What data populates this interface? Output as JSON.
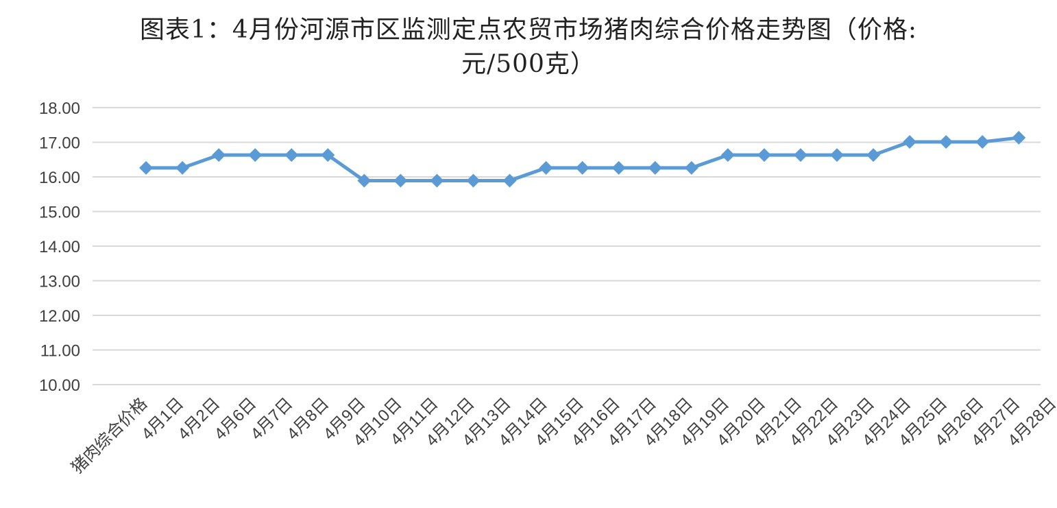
{
  "chart_data": {
    "type": "line",
    "title_lines": [
      "图表1：4月份河源市区监测定点农贸市场猪肉综合价格走势图（价格:",
      "元/500克）"
    ],
    "categories": [
      "猪肉综合价格",
      "4月1日",
      "4月2日",
      "4月6日",
      "4月7日",
      "4月8日",
      "4月9日",
      "4月10日",
      "4月11日",
      "4月12日",
      "4月13日",
      "4月14日",
      "4月15日",
      "4月16日",
      "4月17日",
      "4月18日",
      "4月19日",
      "4月20日",
      "4月21日",
      "4月22日",
      "4月23日",
      "4月24日",
      "4月25日",
      "4月26日",
      "4月27日",
      "4月28日"
    ],
    "series": [
      {
        "values": [
          null,
          16.26,
          16.26,
          16.63,
          16.63,
          16.63,
          16.63,
          15.89,
          15.89,
          15.89,
          15.89,
          15.89,
          16.26,
          16.26,
          16.26,
          16.26,
          16.26,
          16.63,
          16.63,
          16.63,
          16.63,
          16.63,
          17.01,
          17.01,
          17.01,
          17.13
        ]
      }
    ],
    "ylim": [
      10,
      18
    ],
    "yticks": [
      "10.00",
      "11.00",
      "12.00",
      "13.00",
      "14.00",
      "15.00",
      "16.00",
      "17.00",
      "18.00"
    ],
    "grid": true,
    "legend": "none",
    "colors": {
      "line": "#5b9bd5",
      "grid": "#d9d9d9",
      "text": "#404040"
    }
  }
}
